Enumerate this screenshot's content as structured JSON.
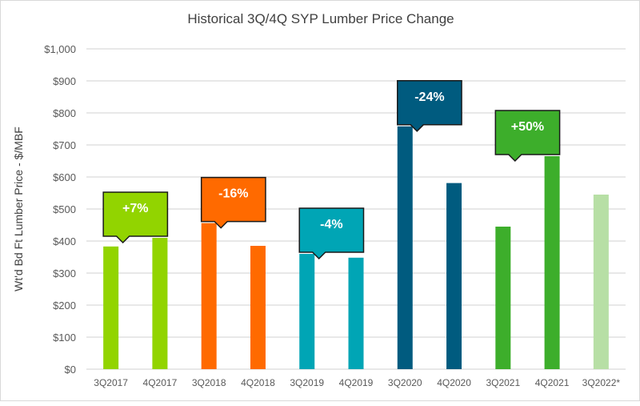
{
  "chart_data": {
    "type": "bar",
    "title": "Historical 3Q/4Q SYP Lumber Price Change",
    "ylabel": "Wt'd Bd Ft Lumber Price - $/MBF",
    "xlabel": "",
    "ylim": [
      0,
      1000
    ],
    "yticks": [
      "$0",
      "$100",
      "$200",
      "$300",
      "$400",
      "$500",
      "$600",
      "$700",
      "$800",
      "$900",
      "$1,000"
    ],
    "grid": true,
    "categories": [
      "3Q2017",
      "4Q2017",
      "3Q2018",
      "4Q2018",
      "3Q2019",
      "4Q2019",
      "3Q2020",
      "4Q2020",
      "3Q2021",
      "4Q2021",
      "3Q2022*"
    ],
    "values": [
      383,
      410,
      456,
      385,
      360,
      348,
      758,
      581,
      445,
      665,
      545
    ],
    "colors": [
      "#92d400",
      "#92d400",
      "#ff6a00",
      "#ff6a00",
      "#00a5b5",
      "#00a5b5",
      "#005b7f",
      "#005b7f",
      "#3dae2b",
      "#3dae2b",
      "#b7dfa5"
    ],
    "annotations": [
      {
        "text": "+7%",
        "between": [
          "3Q2017",
          "4Q2017"
        ],
        "color": "#92d400"
      },
      {
        "text": "-16%",
        "between": [
          "3Q2018",
          "4Q2018"
        ],
        "color": "#ff6a00"
      },
      {
        "text": "-4%",
        "between": [
          "3Q2019",
          "4Q2019"
        ],
        "color": "#00a5b5"
      },
      {
        "text": "-24%",
        "between": [
          "3Q2020",
          "4Q2020"
        ],
        "color": "#005b7f"
      },
      {
        "text": "+50%",
        "between": [
          "3Q2021",
          "4Q2021"
        ],
        "color": "#3dae2b"
      }
    ]
  }
}
